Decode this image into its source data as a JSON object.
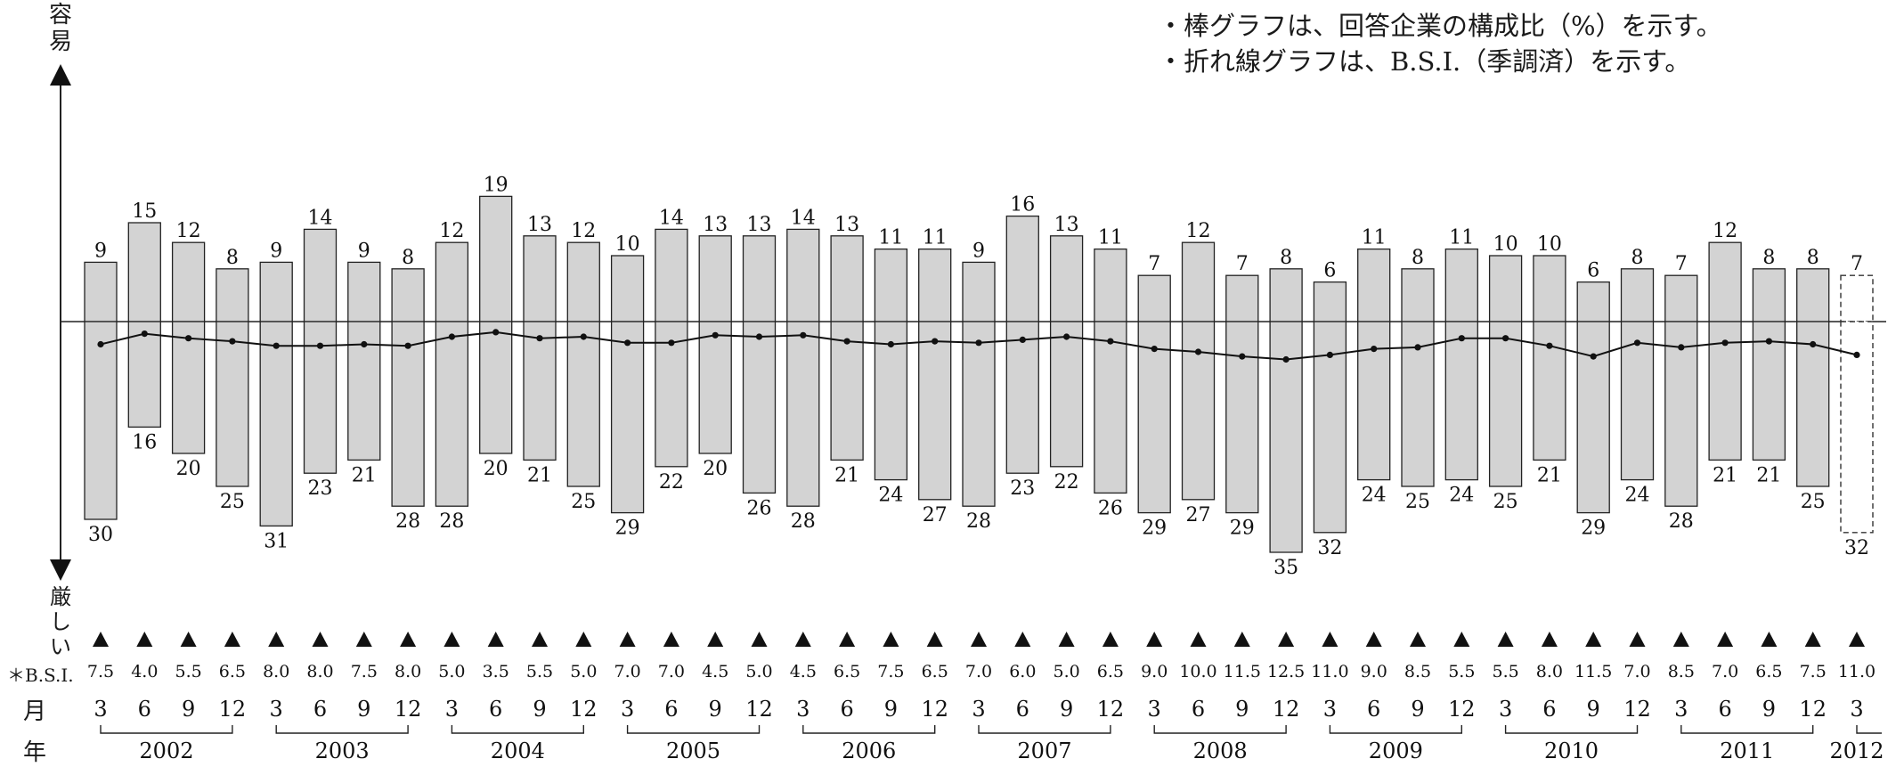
{
  "notes": [
    "・棒グラフは、回答企業の構成比（%）を示す。",
    "・折れ線グラフは、B.S.I.（季調済）を示す。"
  ],
  "axis": {
    "top_label": "容易",
    "bottom_label": "厳しい"
  },
  "row_labels": {
    "bsi": "＊B.S.I.",
    "month": "月",
    "year": "年"
  },
  "chart_data": {
    "type": "bar",
    "title": "",
    "ylabel_top": "容易",
    "ylabel_bottom": "厳しい",
    "grid": false,
    "categories": [
      "2002/3",
      "2002/6",
      "2002/9",
      "2002/12",
      "2003/3",
      "2003/6",
      "2003/9",
      "2003/12",
      "2004/3",
      "2004/6",
      "2004/9",
      "2004/12",
      "2005/3",
      "2005/6",
      "2005/9",
      "2005/12",
      "2006/3",
      "2006/6",
      "2006/9",
      "2006/12",
      "2007/3",
      "2007/6",
      "2007/9",
      "2007/12",
      "2008/3",
      "2008/6",
      "2008/9",
      "2008/12",
      "2009/3",
      "2009/6",
      "2009/9",
      "2009/12",
      "2010/3",
      "2010/6",
      "2010/9",
      "2010/12",
      "2011/3",
      "2011/6",
      "2011/9",
      "2011/12",
      "2012/3"
    ],
    "months": [
      "3",
      "6",
      "9",
      "12",
      "3",
      "6",
      "9",
      "12",
      "3",
      "6",
      "9",
      "12",
      "3",
      "6",
      "9",
      "12",
      "3",
      "6",
      "9",
      "12",
      "3",
      "6",
      "9",
      "12",
      "3",
      "6",
      "9",
      "12",
      "3",
      "6",
      "9",
      "12",
      "3",
      "6",
      "9",
      "12",
      "3",
      "6",
      "9",
      "12",
      "3"
    ],
    "years": [
      "2002",
      "2003",
      "2004",
      "2005",
      "2006",
      "2007",
      "2008",
      "2009",
      "2010",
      "2011",
      "2012"
    ],
    "series": [
      {
        "name": "容易",
        "values": [
          9,
          15,
          12,
          8,
          9,
          14,
          9,
          8,
          12,
          19,
          13,
          12,
          10,
          14,
          13,
          13,
          14,
          13,
          11,
          11,
          9,
          16,
          13,
          11,
          7,
          12,
          7,
          8,
          6,
          11,
          8,
          11,
          10,
          10,
          6,
          8,
          7,
          12,
          8,
          8,
          7
        ]
      },
      {
        "name": "厳しい",
        "values": [
          30,
          16,
          20,
          25,
          31,
          23,
          21,
          28,
          28,
          20,
          21,
          25,
          29,
          22,
          20,
          26,
          28,
          21,
          24,
          27,
          28,
          23,
          22,
          26,
          29,
          27,
          29,
          35,
          32,
          24,
          25,
          24,
          25,
          21,
          29,
          24,
          28,
          21,
          21,
          25,
          32
        ]
      },
      {
        "name": "B.S.I.",
        "type": "line",
        "values": [
          -7.5,
          -4.0,
          -5.5,
          -6.5,
          -8.0,
          -8.0,
          -7.5,
          -8.0,
          -5.0,
          -3.5,
          -5.5,
          -5.0,
          -7.0,
          -7.0,
          -4.5,
          -5.0,
          -4.5,
          -6.5,
          -7.5,
          -6.5,
          -7.0,
          -6.0,
          -5.0,
          -6.5,
          -9.0,
          -10.0,
          -11.5,
          -12.5,
          -11.0,
          -9.0,
          -8.5,
          -5.5,
          -5.5,
          -8.0,
          -11.5,
          -7.0,
          -8.5,
          -7.0,
          -6.5,
          -7.5,
          -11.0
        ]
      }
    ],
    "bsi_labels": [
      "7.5",
      "4.0",
      "5.5",
      "6.5",
      "8.0",
      "8.0",
      "7.5",
      "8.0",
      "5.0",
      "3.5",
      "5.5",
      "5.0",
      "7.0",
      "7.0",
      "4.5",
      "5.0",
      "4.5",
      "6.5",
      "7.5",
      "6.5",
      "7.0",
      "6.0",
      "5.0",
      "6.5",
      "9.0",
      "10.0",
      "11.5",
      "12.5",
      "11.0",
      "9.0",
      "8.5",
      "5.5",
      "5.5",
      "8.0",
      "11.5",
      "7.0",
      "8.5",
      "7.0",
      "6.5",
      "7.5",
      "11.0"
    ],
    "forecast_index": 40,
    "ylim": [
      -35,
      19
    ]
  }
}
